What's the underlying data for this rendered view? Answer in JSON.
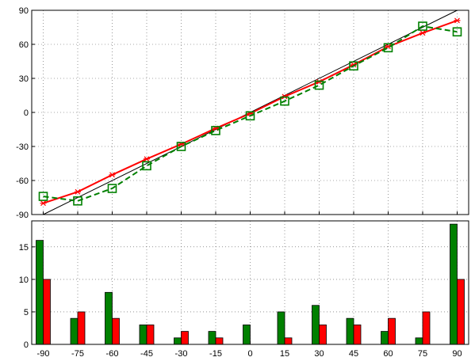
{
  "chart_data": [
    {
      "type": "line",
      "title": "",
      "xlabel": "",
      "ylabel": "",
      "xlim": [
        -95,
        95
      ],
      "ylim": [
        -90,
        90
      ],
      "grid": true,
      "x": [
        -90,
        -75,
        -60,
        -45,
        -30,
        -15,
        0,
        15,
        30,
        45,
        60,
        75,
        90
      ],
      "xticks": [
        "-90",
        "-75",
        "-60",
        "-45",
        "-30",
        "-15",
        "0",
        "15",
        "30",
        "45",
        "60",
        "75",
        "90"
      ],
      "yticks": [
        "-90",
        "-60",
        "-30",
        "0",
        "30",
        "60",
        "90"
      ],
      "reference_line": {
        "x": [
          -90,
          90
        ],
        "y": [
          -90,
          90
        ],
        "color": "#000000"
      },
      "series": [
        {
          "color": "#ff0000",
          "line": "solid",
          "marker": "x",
          "values": [
            -80,
            -70,
            -55,
            -41,
            -28,
            -14,
            -1,
            14,
            27,
            42,
            58,
            70,
            81
          ]
        },
        {
          "color": "#008000",
          "line": "dashed",
          "marker": "square",
          "values": [
            -74,
            -78,
            -67,
            -47,
            -30,
            -16,
            -3,
            10,
            24,
            41,
            57,
            76,
            71
          ]
        }
      ]
    },
    {
      "type": "bar",
      "title": "",
      "xlabel": "",
      "ylabel": "",
      "ylim": [
        0,
        19
      ],
      "grid": true,
      "categories": [
        "-90",
        "-75",
        "-60",
        "-45",
        "-30",
        "-15",
        "0",
        "15",
        "30",
        "45",
        "60",
        "75",
        "90"
      ],
      "yticks": [
        "0",
        "5",
        "10",
        "15"
      ],
      "series": [
        {
          "color": "#008000",
          "values": [
            16,
            4,
            8,
            3,
            1,
            2,
            3,
            5,
            6,
            4,
            2,
            1,
            18.5
          ]
        },
        {
          "color": "#ff0000",
          "values": [
            10,
            5,
            4,
            3,
            2,
            1,
            0,
            1,
            3,
            3,
            4,
            5,
            10
          ]
        }
      ]
    }
  ]
}
